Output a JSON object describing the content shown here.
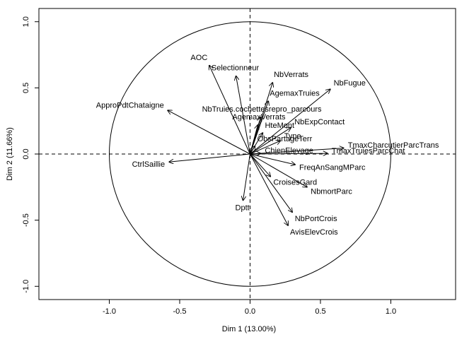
{
  "chart_data": {
    "type": "pca-variables",
    "xlabel": "Dim 1 (13.00%)",
    "ylabel": "Dim 2 (11.66%)",
    "xlim": [
      -1.5,
      1.46
    ],
    "ylim": [
      -1.1,
      1.1
    ],
    "xticks": [
      {
        "value": -1,
        "label": "-1.0"
      },
      {
        "value": -0.5,
        "label": "-0.5"
      },
      {
        "value": 0,
        "label": "0.0"
      },
      {
        "value": 0.5,
        "label": "0.5"
      },
      {
        "value": 1,
        "label": "1.0"
      }
    ],
    "yticks": [
      {
        "value": -1,
        "label": "-1.0"
      },
      {
        "value": -0.5,
        "label": "-0.5"
      },
      {
        "value": 0,
        "label": "0.0"
      },
      {
        "value": 0.5,
        "label": "0.5"
      },
      {
        "value": 1,
        "label": "1.0"
      }
    ],
    "color": "#000000",
    "points": [
      {
        "label": "AOC",
        "x": -0.29,
        "y": 0.67
      },
      {
        "label": "Selectionneur",
        "x": -0.1,
        "y": 0.59
      },
      {
        "label": "ApproPdtChataigne",
        "x": -0.585,
        "y": 0.33
      },
      {
        "label": "CtrlSaillie",
        "x": -0.575,
        "y": -0.06
      },
      {
        "label": "NbVerrats",
        "x": 0.16,
        "y": 0.54
      },
      {
        "label": "AgemaxTruies",
        "x": 0.13,
        "y": 0.4
      },
      {
        "label": "NbFugue",
        "x": 0.57,
        "y": 0.49
      },
      {
        "label": "NbTruies.cochettesrepro_parcours",
        "x": 0.075,
        "y": 0.28
      },
      {
        "label": "AgemaxVerrats",
        "x": 0.055,
        "y": 0.22
      },
      {
        "label": "HteMont",
        "x": 0.09,
        "y": 0.16
      },
      {
        "label": "NbExpContact",
        "x": 0.29,
        "y": 0.2
      },
      {
        "label": "Type",
        "x": 0.215,
        "y": 0.1
      },
      {
        "label": "ObsPartageTerr",
        "x": 0.035,
        "y": 0.06
      },
      {
        "label": "ChienElevage",
        "x": 0.075,
        "y": 0.005
      },
      {
        "label": "TmaxCharcutierParcTrans",
        "x": 0.665,
        "y": 0.045
      },
      {
        "label": "TmaxTruiesParcChat",
        "x": 0.55,
        "y": 0.005
      },
      {
        "label": "FreqAnSangMParc",
        "x": 0.32,
        "y": -0.08
      },
      {
        "label": "NbmortParc",
        "x": 0.405,
        "y": -0.25
      },
      {
        "label": "CroisesGard",
        "x": 0.145,
        "y": -0.17
      },
      {
        "label": "Dptt",
        "x": -0.05,
        "y": -0.35
      },
      {
        "label": "NbPortCrois",
        "x": 0.3,
        "y": -0.44
      },
      {
        "label": "AvisElevCrois",
        "x": 0.27,
        "y": -0.54
      }
    ]
  }
}
